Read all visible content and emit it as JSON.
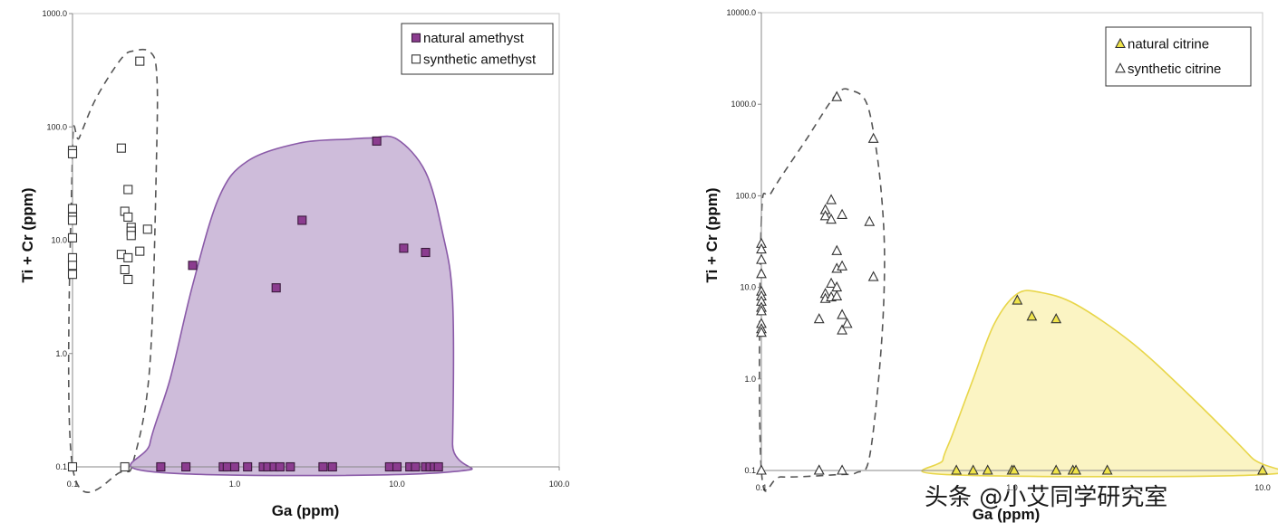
{
  "watermark": "头条 @小艾同学研究室",
  "chart_data": [
    {
      "type": "scatter",
      "scale": "log-log",
      "xlabel": "Ga (ppm)",
      "ylabel": "Ti + Cr (ppm)",
      "xlim": [
        0.1,
        100.0
      ],
      "ylim": [
        0.1,
        1000.0
      ],
      "x_ticks": [
        "0.1",
        "1.0",
        "10.0",
        "100.0"
      ],
      "y_ticks": [
        "0.1",
        "1.0",
        "10.0",
        "100.0",
        "1000.0"
      ],
      "legend": {
        "position": "top-right",
        "entries": [
          "natural amethyst",
          "synthetic amethyst"
        ]
      },
      "regions": [
        {
          "series": "synthetic amethyst",
          "style": "dashed-outline",
          "outline": [
            [
              0.1,
              60
            ],
            [
              0.1,
              0.1
            ],
            [
              0.2,
              0.09
            ],
            [
              0.24,
              0.12
            ],
            [
              0.3,
              0.8
            ],
            [
              0.33,
              60
            ],
            [
              0.33,
              300
            ],
            [
              0.3,
              460
            ],
            [
              0.24,
              470
            ],
            [
              0.2,
              400
            ],
            [
              0.14,
              180
            ],
            [
              0.11,
              80
            ]
          ]
        },
        {
          "series": "natural amethyst",
          "style": "filled",
          "color": "#c9b5d6",
          "edge": "#8a5aa8",
          "outline": [
            [
              0.32,
              0.09
            ],
            [
              21,
              0.09
            ],
            [
              22,
              0.16
            ],
            [
              22,
              3
            ],
            [
              19,
              12
            ],
            [
              15,
              40
            ],
            [
              10,
              78
            ],
            [
              7,
              80
            ],
            [
              5,
              78
            ],
            [
              2.5,
              72
            ],
            [
              1.2,
              50
            ],
            [
              0.8,
              24
            ],
            [
              0.55,
              4
            ],
            [
              0.4,
              0.6
            ],
            [
              0.3,
              0.16
            ]
          ]
        }
      ],
      "series": [
        {
          "name": "synthetic amethyst",
          "marker": "square",
          "fill": "#ffffff",
          "stroke": "#333333",
          "points": [
            [
              0.1,
              62
            ],
            [
              0.1,
              58
            ],
            [
              0.1,
              19
            ],
            [
              0.1,
              16
            ],
            [
              0.1,
              15
            ],
            [
              0.1,
              10.5
            ],
            [
              0.1,
              7
            ],
            [
              0.1,
              6
            ],
            [
              0.1,
              5
            ],
            [
              0.1,
              0.1
            ],
            [
              0.2,
              65
            ],
            [
              0.21,
              18
            ],
            [
              0.22,
              28
            ],
            [
              0.22,
              16
            ],
            [
              0.23,
              13
            ],
            [
              0.23,
              12
            ],
            [
              0.23,
              11
            ],
            [
              0.2,
              7.5
            ],
            [
              0.21,
              5.5
            ],
            [
              0.22,
              7
            ],
            [
              0.22,
              4.5
            ],
            [
              0.26,
              8
            ],
            [
              0.29,
              12.5
            ],
            [
              0.26,
              380
            ],
            [
              0.21,
              0.1
            ]
          ]
        },
        {
          "name": "natural amethyst",
          "marker": "square",
          "fill": "#8b3c8f",
          "stroke": "#3a1a3c",
          "points": [
            [
              0.55,
              6
            ],
            [
              1.8,
              3.8
            ],
            [
              2.6,
              15
            ],
            [
              7.5,
              75
            ],
            [
              11,
              8.5
            ],
            [
              15,
              7.8
            ],
            [
              0.35,
              0.1
            ],
            [
              0.5,
              0.1
            ],
            [
              0.85,
              0.1
            ],
            [
              0.9,
              0.1
            ],
            [
              1.0,
              0.1
            ],
            [
              1.2,
              0.1
            ],
            [
              1.5,
              0.1
            ],
            [
              1.6,
              0.1
            ],
            [
              1.75,
              0.1
            ],
            [
              1.9,
              0.1
            ],
            [
              2.2,
              0.1
            ],
            [
              3.5,
              0.1
            ],
            [
              4.0,
              0.1
            ],
            [
              9.0,
              0.1
            ],
            [
              10.0,
              0.1
            ],
            [
              12.0,
              0.1
            ],
            [
              13.0,
              0.1
            ],
            [
              15.0,
              0.1
            ],
            [
              16.0,
              0.1
            ],
            [
              17.0,
              0.1
            ],
            [
              18.0,
              0.1
            ]
          ]
        }
      ]
    },
    {
      "type": "scatter",
      "scale": "log-log",
      "xlabel": "Ga (ppm)",
      "ylabel": "Ti + Cr (ppm)",
      "xlim": [
        0.1,
        10.0
      ],
      "ylim": [
        0.1,
        10000.0
      ],
      "x_ticks": [
        "0.1",
        "1.0",
        "10.0"
      ],
      "y_ticks": [
        "0.1",
        "1.0",
        "10.0",
        "100.0",
        "1000.0",
        "10000.0"
      ],
      "legend": {
        "position": "top-right",
        "entries": [
          "natural citrine",
          "synthetic citrine"
        ]
      },
      "regions": [
        {
          "series": "synthetic citrine",
          "style": "dashed-outline",
          "outline": [
            [
              0.1,
              55
            ],
            [
              0.1,
              0.1
            ],
            [
              0.12,
              0.085
            ],
            [
              0.2,
              0.09
            ],
            [
              0.24,
              0.095
            ],
            [
              0.27,
              0.14
            ],
            [
              0.3,
              2
            ],
            [
              0.31,
              20
            ],
            [
              0.3,
              120
            ],
            [
              0.28,
              500
            ],
            [
              0.26,
              1100
            ],
            [
              0.23,
              1400
            ],
            [
              0.2,
              1300
            ],
            [
              0.15,
              400
            ],
            [
              0.11,
              110
            ]
          ]
        },
        {
          "series": "natural citrine",
          "style": "filled",
          "color": "#fbf3bd",
          "edge": "#e8d64a",
          "outline": [
            [
              0.55,
              0.09
            ],
            [
              10.0,
              0.09
            ],
            [
              9.0,
              0.14
            ],
            [
              5.0,
              0.7
            ],
            [
              3.0,
              2.5
            ],
            [
              1.8,
              6.5
            ],
            [
              1.3,
              8.8
            ],
            [
              1.05,
              8.5
            ],
            [
              0.85,
              4
            ],
            [
              0.7,
              1.0
            ],
            [
              0.58,
              0.25
            ],
            [
              0.53,
              0.13
            ]
          ]
        }
      ],
      "series": [
        {
          "name": "synthetic citrine",
          "marker": "triangle",
          "fill": "#ffffff",
          "stroke": "#333333",
          "points": [
            [
              0.1,
              30
            ],
            [
              0.1,
              26
            ],
            [
              0.1,
              20
            ],
            [
              0.1,
              14
            ],
            [
              0.1,
              9
            ],
            [
              0.1,
              8
            ],
            [
              0.1,
              7
            ],
            [
              0.1,
              6
            ],
            [
              0.1,
              5.5
            ],
            [
              0.1,
              4
            ],
            [
              0.1,
              3.5
            ],
            [
              0.1,
              3.2
            ],
            [
              0.1,
              0.1
            ],
            [
              0.2,
              1200
            ],
            [
              0.28,
              420
            ],
            [
              0.19,
              90
            ],
            [
              0.18,
              70
            ],
            [
              0.18,
              60
            ],
            [
              0.19,
              55
            ],
            [
              0.21,
              62
            ],
            [
              0.27,
              52
            ],
            [
              0.2,
              25
            ],
            [
              0.2,
              16
            ],
            [
              0.21,
              17
            ],
            [
              0.19,
              11
            ],
            [
              0.2,
              10
            ],
            [
              0.18,
              8.5
            ],
            [
              0.18,
              7.5
            ],
            [
              0.19,
              7.8
            ],
            [
              0.2,
              8
            ],
            [
              0.21,
              5
            ],
            [
              0.17,
              4.5
            ],
            [
              0.21,
              3.4
            ],
            [
              0.22,
              4
            ],
            [
              0.28,
              13
            ],
            [
              0.17,
              0.1
            ],
            [
              0.17,
              0.1
            ],
            [
              0.21,
              0.1
            ]
          ]
        },
        {
          "name": "natural citrine",
          "marker": "triangle",
          "fill": "#f0e44a",
          "stroke": "#333333",
          "points": [
            [
              1.05,
              7.2
            ],
            [
              1.2,
              4.8
            ],
            [
              1.5,
              4.5
            ],
            [
              0.6,
              0.1
            ],
            [
              0.7,
              0.1
            ],
            [
              0.8,
              0.1
            ],
            [
              1.0,
              0.1
            ],
            [
              1.02,
              0.1
            ],
            [
              1.5,
              0.1
            ],
            [
              1.75,
              0.1
            ],
            [
              1.8,
              0.1
            ],
            [
              2.4,
              0.1
            ],
            [
              10.0,
              0.1
            ]
          ]
        }
      ]
    }
  ]
}
